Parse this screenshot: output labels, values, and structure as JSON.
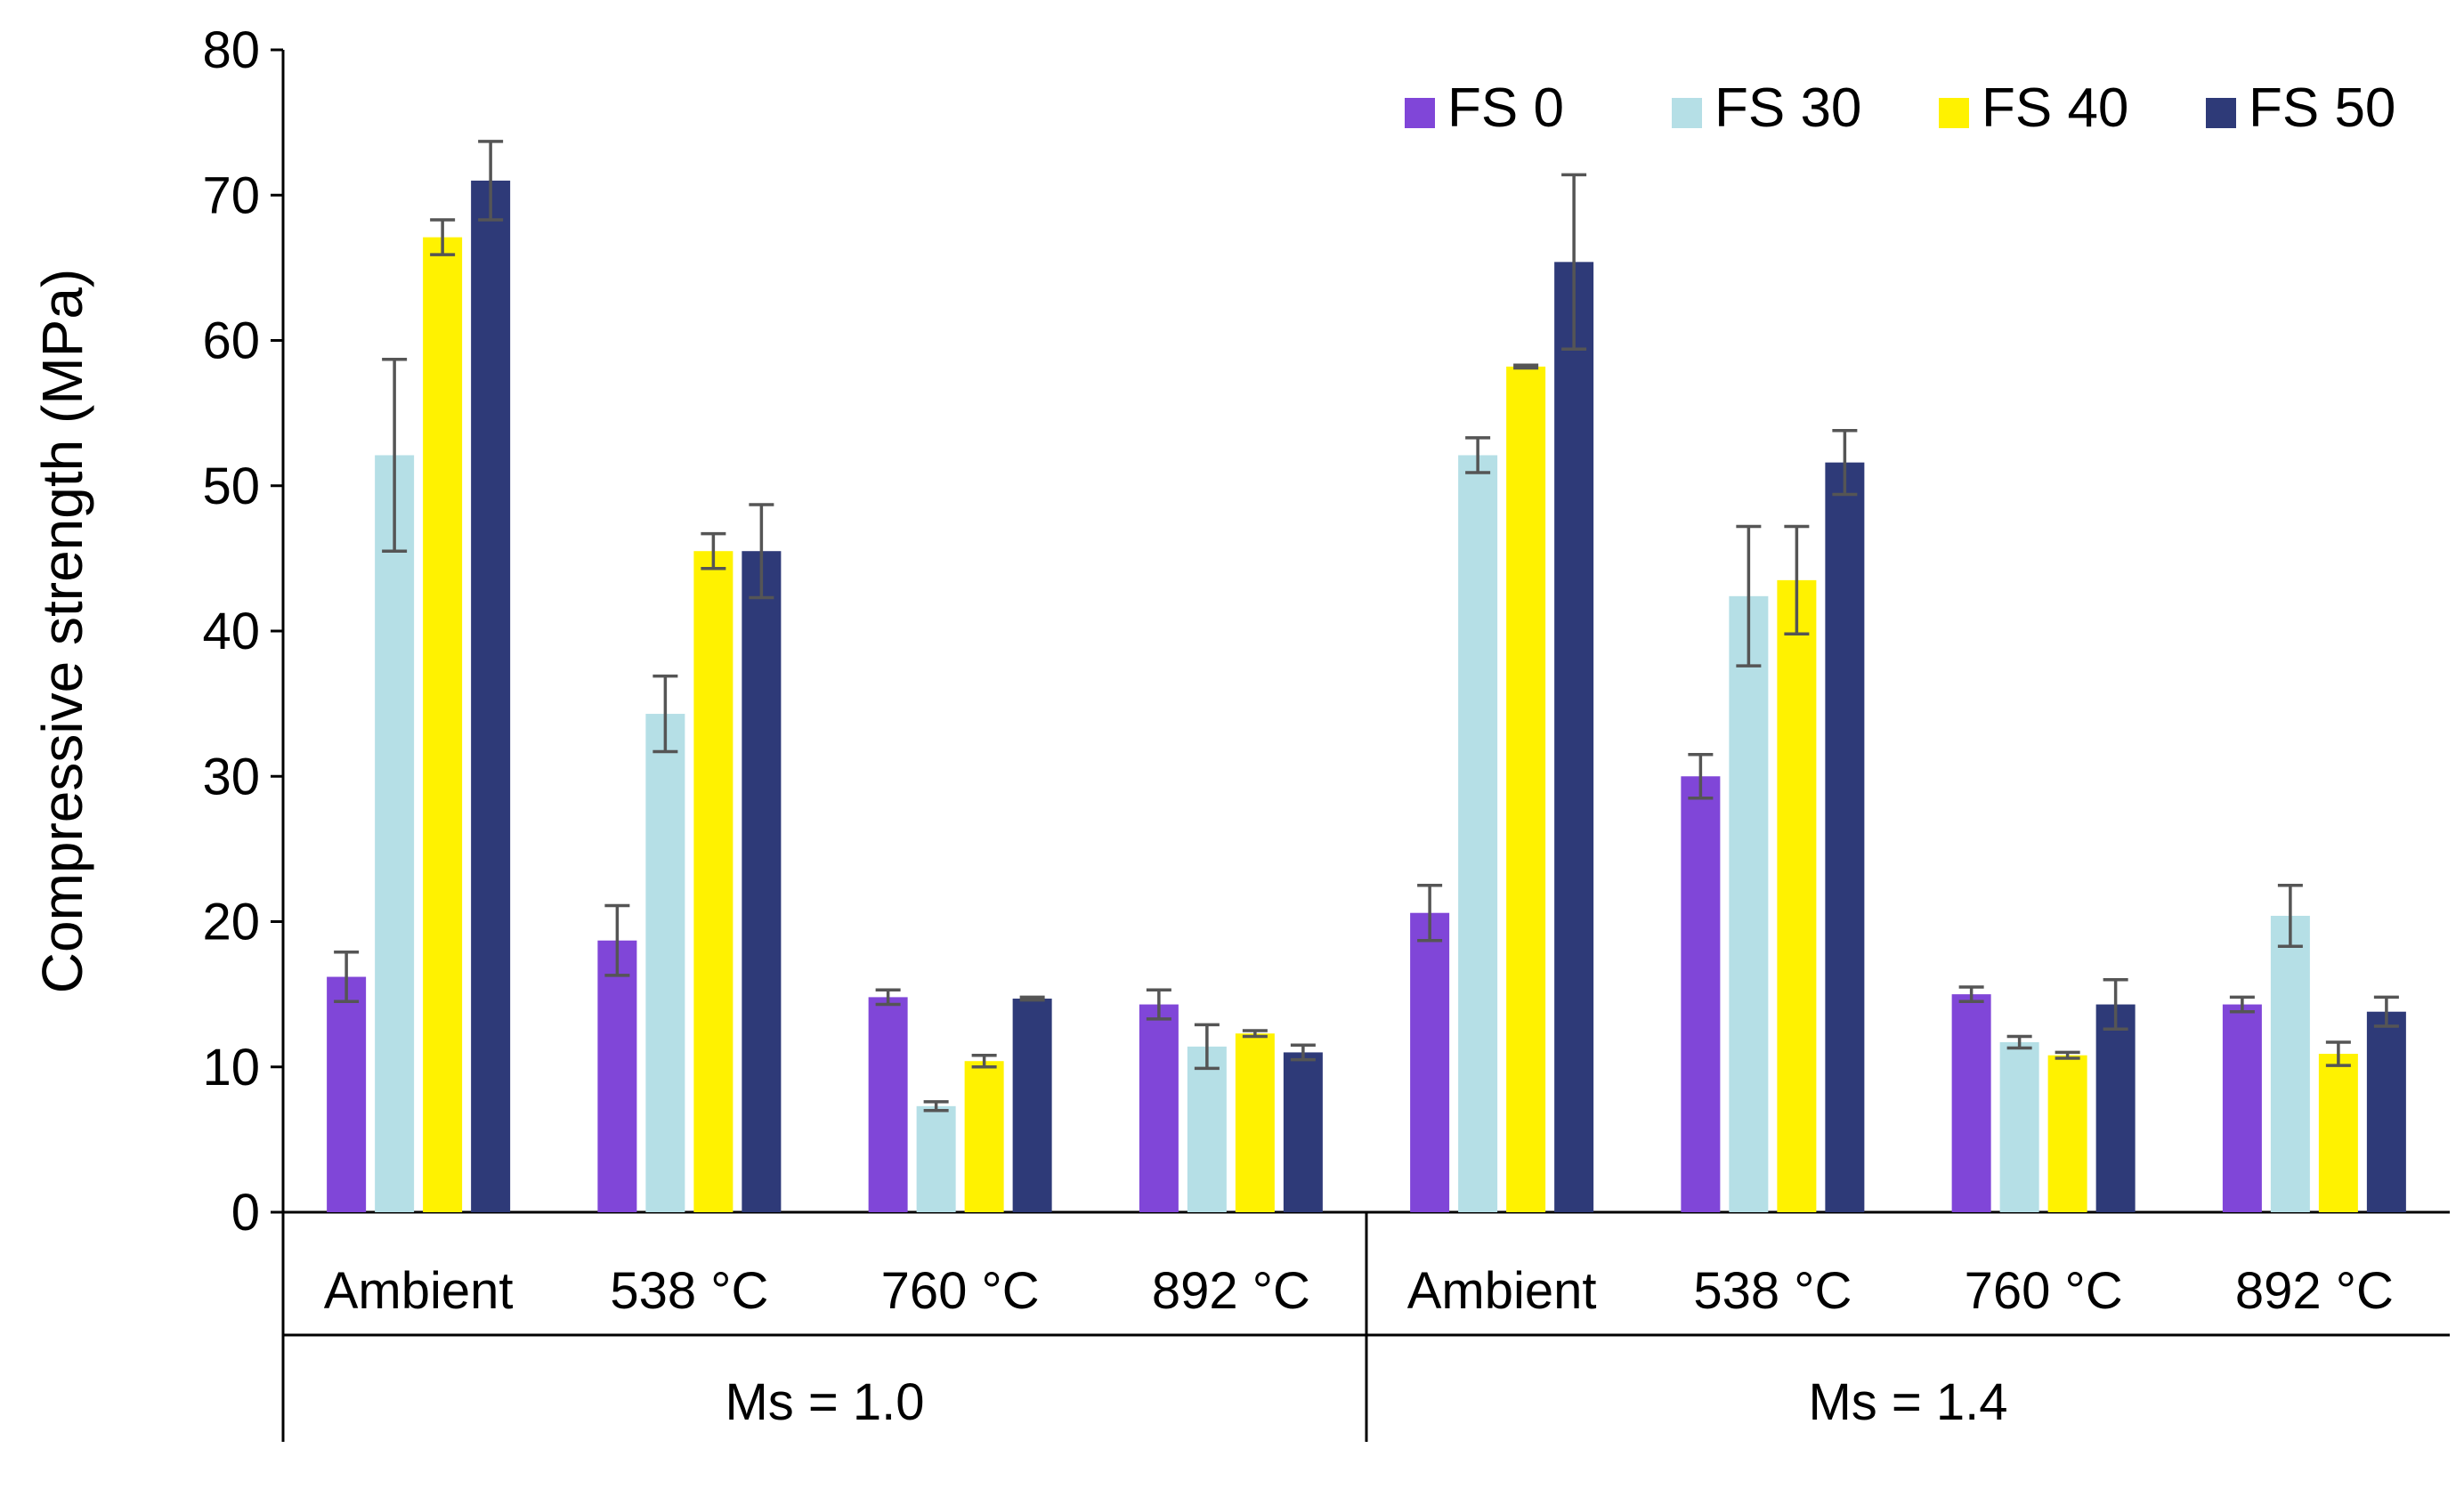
{
  "chart_data": {
    "type": "bar",
    "ylabel": "Compressive strength (MPa)",
    "xlabel": "",
    "ylim": [
      0,
      80
    ],
    "yticks": [
      "0",
      "10",
      "20",
      "30",
      "40",
      "50",
      "60",
      "70",
      "80"
    ],
    "grid": false,
    "legend_position": "top-right",
    "groups": [
      {
        "label": "Ms = 1.0",
        "categories": [
          "Ambient",
          "538 °C",
          "760 °C",
          "892 °C"
        ]
      },
      {
        "label": "Ms = 1.4",
        "categories": [
          "Ambient",
          "538 °C",
          "760 °C",
          "892 °C"
        ]
      }
    ],
    "series": [
      {
        "name": "FS 0",
        "color": "#8046d8",
        "values": [
          16.2,
          18.7,
          14.8,
          14.3,
          20.6,
          30.0,
          15.0,
          14.3
        ],
        "errors": [
          1.7,
          2.4,
          0.5,
          1.0,
          1.9,
          1.5,
          0.5,
          0.5
        ]
      },
      {
        "name": "FS 30",
        "color": "#b5dfe6",
        "values": [
          52.1,
          34.3,
          7.3,
          11.4,
          52.1,
          42.4,
          11.7,
          20.4
        ],
        "errors": [
          6.6,
          2.6,
          0.3,
          1.5,
          1.2,
          4.8,
          0.4,
          2.1
        ]
      },
      {
        "name": "FS 40",
        "color": "#fff200",
        "values": [
          67.1,
          45.5,
          10.4,
          12.3,
          58.2,
          43.5,
          10.8,
          10.9
        ],
        "errors": [
          1.2,
          1.2,
          0.4,
          0.2,
          0.1,
          3.7,
          0.2,
          0.8
        ]
      },
      {
        "name": "FS 50",
        "color": "#2e3a78",
        "values": [
          71.0,
          45.5,
          14.7,
          11.0,
          65.4,
          51.6,
          14.3,
          13.8
        ],
        "errors": [
          2.7,
          3.2,
          0.1,
          0.5,
          6.0,
          2.2,
          1.7,
          1.0
        ]
      }
    ],
    "error_bar_color": "#555555"
  }
}
